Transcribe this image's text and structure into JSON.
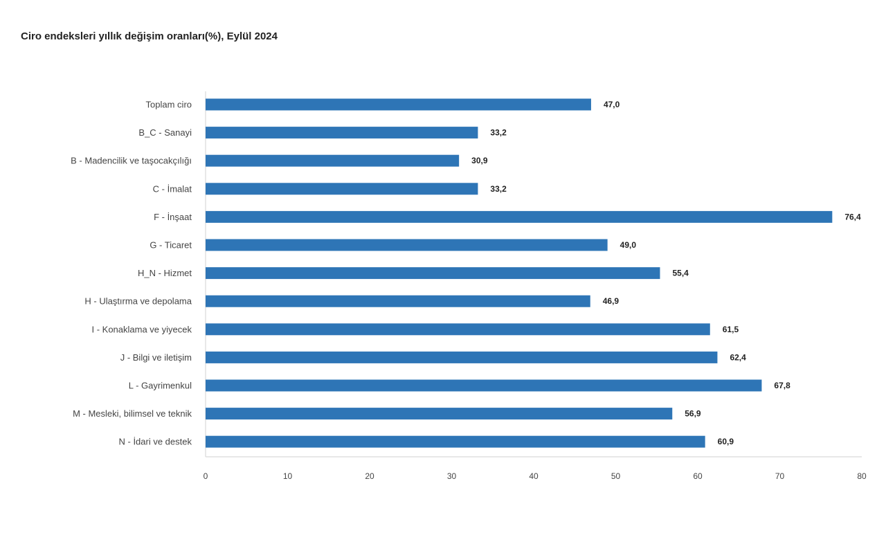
{
  "chart_data": {
    "type": "bar",
    "orientation": "horizontal",
    "title": "Ciro endeksleri yıllık değişim oranları(%), Eylül 2024",
    "categories": [
      "Toplam ciro",
      "B_C - Sanayi",
      "B - Madencilik ve taşocakçılığı",
      "C - İmalat",
      "F - İnşaat",
      "G - Ticaret",
      "H_N - Hizmet",
      "H - Ulaştırma ve depolama",
      "I - Konaklama ve yiyecek",
      "J - Bilgi ve iletişim",
      "L - Gayrimenkul",
      "M - Mesleki, bilimsel ve teknik",
      "N - İdari ve destek"
    ],
    "values": [
      47.0,
      33.2,
      30.9,
      33.2,
      76.4,
      49.0,
      55.4,
      46.9,
      61.5,
      62.4,
      67.8,
      56.9,
      60.9
    ],
    "data_labels": [
      "47,0",
      "33,2",
      "30,9",
      "33,2",
      "76,4",
      "49,0",
      "55,4",
      "46,9",
      "61,5",
      "62,4",
      "67,8",
      "56,9",
      "60,9"
    ],
    "xlim": [
      0,
      80
    ],
    "xticks": [
      "0",
      "10",
      "20",
      "30",
      "40",
      "50",
      "60",
      "70",
      "80"
    ],
    "grid": false,
    "bar_color": "#2e75b6"
  }
}
